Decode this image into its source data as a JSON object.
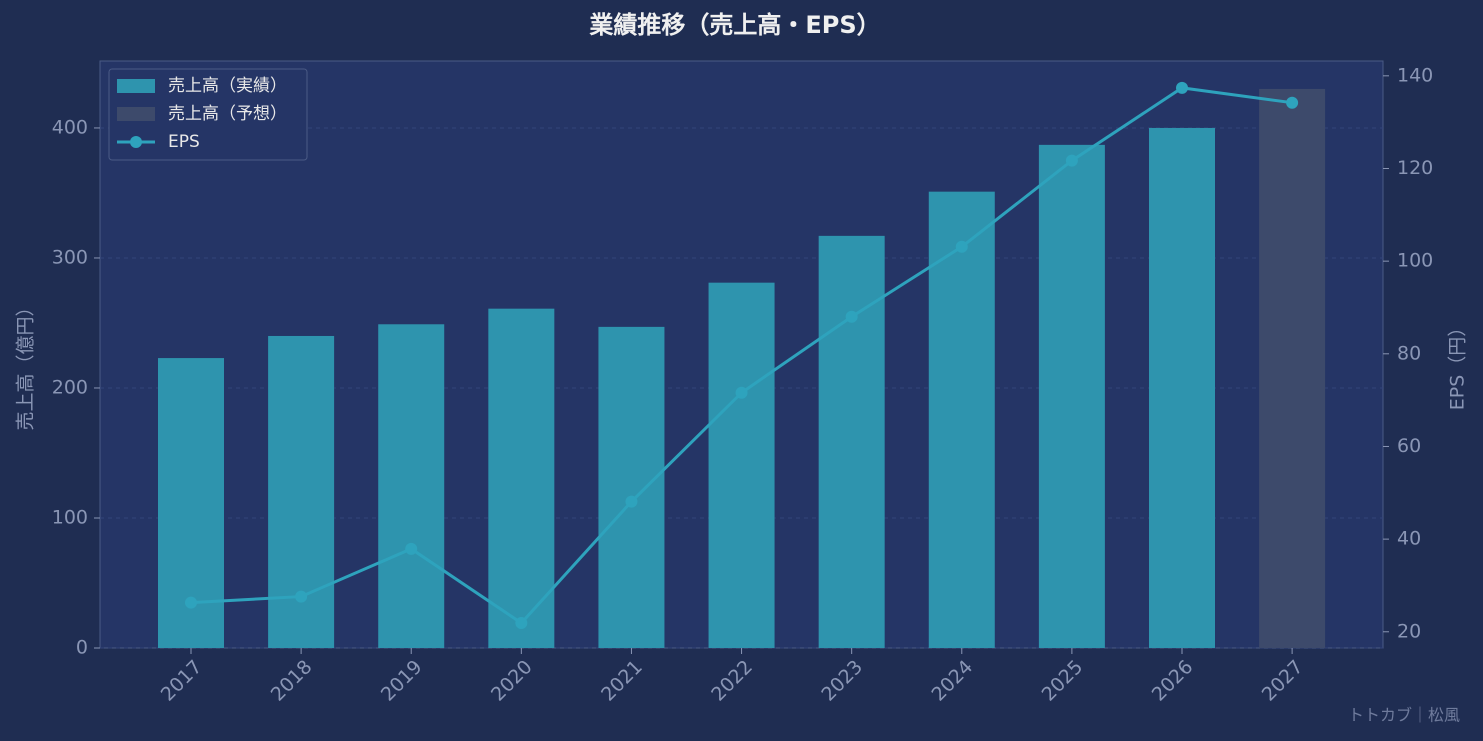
{
  "chart_data": {
    "type": "bar-line",
    "title": "業績推移（売上高・EPS）",
    "categories": [
      "2017",
      "2018",
      "2019",
      "2020",
      "2021",
      "2022",
      "2023",
      "2024",
      "2025",
      "2026",
      "2027"
    ],
    "series": [
      {
        "name": "売上高（実績）",
        "color": "#2e94ae",
        "type": "bar",
        "values": [
          223,
          240,
          249,
          261,
          247,
          281,
          317,
          351,
          387,
          400,
          null
        ]
      },
      {
        "name": "売上高（予想）",
        "color": "#3d4a6b",
        "type": "bar",
        "values": [
          null,
          null,
          null,
          null,
          null,
          null,
          null,
          null,
          null,
          null,
          430
        ]
      },
      {
        "name": "EPS",
        "color": "#2ea3bd",
        "type": "line",
        "axis": "y2",
        "values": [
          26.3,
          27.6,
          37.9,
          21.9,
          48.1,
          71.6,
          88.0,
          103.1,
          121.7,
          137.4,
          134.2
        ]
      }
    ],
    "ylabel": "売上高（億円）",
    "y2label": "EPS（円）",
    "ylim": [
      0,
      451.5
    ],
    "yticks": [
      0,
      100,
      200,
      300,
      400
    ],
    "y2lim": [
      16.5,
      143.2
    ],
    "y2ticks": [
      20,
      40,
      60,
      80,
      100,
      120,
      140
    ],
    "grid": true,
    "legend": "upper-left",
    "annotation": "トトカブ｜松風"
  }
}
